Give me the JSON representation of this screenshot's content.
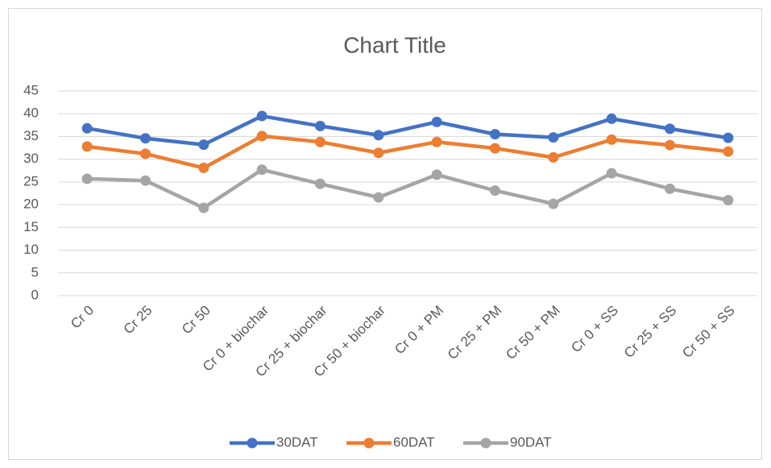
{
  "chart_data": {
    "type": "line",
    "title": "Chart Title",
    "categories": [
      "Cr 0",
      "Cr 25",
      "Cr 50",
      "Cr 0 + biochar",
      "Cr 25 + biochar",
      "Cr 50 + biochar",
      "Cr 0 + PM",
      "Cr 25 + PM",
      "Cr 50 + PM",
      "Cr 0 + SS",
      "Cr 25 + SS",
      "Cr 50 + SS"
    ],
    "series": [
      {
        "name": "30DAT",
        "color": "#4472c4",
        "values": [
          36.8,
          34.6,
          33.2,
          39.5,
          37.3,
          35.3,
          38.2,
          35.5,
          34.8,
          38.9,
          36.7,
          34.7
        ]
      },
      {
        "name": "60DAT",
        "color": "#ed7d31",
        "values": [
          32.8,
          31.2,
          28.1,
          35.1,
          33.8,
          31.4,
          33.8,
          32.4,
          30.4,
          34.3,
          33.1,
          31.7
        ]
      },
      {
        "name": "90DAT",
        "color": "#a5a5a5",
        "values": [
          25.7,
          25.3,
          19.3,
          27.7,
          24.6,
          21.6,
          26.6,
          23.1,
          20.2,
          26.9,
          23.5,
          21.0
        ]
      }
    ],
    "ylim": [
      0,
      45
    ],
    "yticks": [
      0,
      5,
      10,
      15,
      20,
      25,
      30,
      35,
      40,
      45
    ],
    "grid": true,
    "legend": "bottom"
  }
}
